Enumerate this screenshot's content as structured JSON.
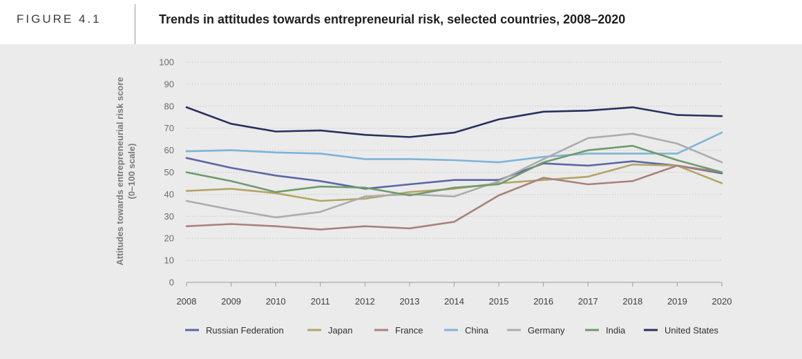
{
  "figure": {
    "label": "FIGURE 4.1",
    "title": "Trends in attitudes towards entrepreneurial risk, selected countries, 2008–2020"
  },
  "chart_data": {
    "type": "line",
    "title": "Trends in attitudes towards entrepreneurial risk, selected countries, 2008–2020",
    "xlabel": "",
    "ylabel": "Attitudes towards entrepreneurial risk score",
    "ylabel_sub": "(0–100 scale)",
    "x": [
      "2008",
      "2009",
      "2010",
      "2011",
      "2012",
      "2013",
      "2014",
      "2015",
      "2016",
      "2017",
      "2018",
      "2019",
      "2020"
    ],
    "ylim": [
      0,
      100
    ],
    "yticks": [
      0,
      10,
      20,
      30,
      40,
      50,
      60,
      70,
      80,
      90,
      100
    ],
    "grid": true,
    "legend_position": "bottom",
    "series": [
      {
        "name": "Russian Federation",
        "color": "#5a66a6",
        "values": [
          56.5,
          52,
          48.5,
          46,
          42.5,
          44.5,
          46.5,
          46.5,
          54,
          53,
          55,
          53,
          49.5
        ]
      },
      {
        "name": "Japan",
        "color": "#b5a465",
        "values": [
          41.5,
          42.5,
          40.5,
          37,
          38,
          41,
          42.5,
          45,
          46.5,
          48,
          53.5,
          53,
          45
        ]
      },
      {
        "name": "France",
        "color": "#a8817a",
        "values": [
          25.5,
          26.5,
          25.5,
          24,
          25.5,
          24.5,
          27.5,
          39.5,
          47.5,
          44.5,
          46,
          53,
          50
        ]
      },
      {
        "name": "China",
        "color": "#7cb4d8",
        "values": [
          59.5,
          60,
          59,
          58.5,
          56,
          56,
          55.5,
          54.5,
          57,
          58.5,
          58.5,
          58.5,
          68
        ]
      },
      {
        "name": "Germany",
        "color": "#acacac",
        "values": [
          37,
          33,
          29.5,
          32,
          39,
          40,
          39,
          46,
          56,
          65.5,
          67.5,
          63,
          54.5
        ]
      },
      {
        "name": "India",
        "color": "#6e9a6c",
        "values": [
          50,
          46,
          41,
          43.5,
          43,
          39.5,
          43,
          44.5,
          54.5,
          60,
          62,
          55.5,
          50
        ]
      },
      {
        "name": "United States",
        "color": "#272f5e",
        "values": [
          79.5,
          72,
          68.5,
          69,
          67,
          66,
          68,
          74,
          77.5,
          78,
          79.5,
          76,
          75.5
        ]
      }
    ]
  }
}
